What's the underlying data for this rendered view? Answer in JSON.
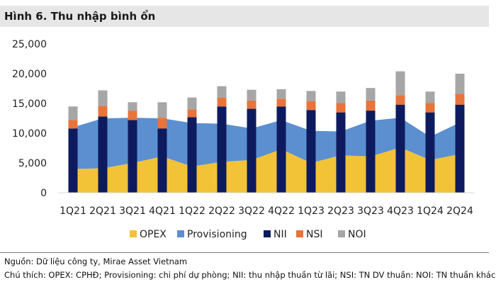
{
  "title": "Hình 6. Thu nhập bình ổn",
  "chart_data": {
    "type": "bar",
    "categories": [
      "1Q21",
      "2Q21",
      "3Q21",
      "4Q21",
      "1Q22",
      "2Q22",
      "3Q22",
      "4Q22",
      "1Q23",
      "2Q23",
      "3Q23",
      "4Q23",
      "1Q24",
      "2Q24"
    ],
    "area_series": [
      {
        "name": "OPEX",
        "color": "#f2c337",
        "values": [
          4000,
          4100,
          5000,
          6100,
          4400,
          5200,
          5500,
          7300,
          5000,
          6300,
          6100,
          7600,
          5500,
          6500
        ]
      },
      {
        "name": "Provisioning",
        "color": "#5b8fd0",
        "values": [
          7000,
          8400,
          7600,
          6400,
          7300,
          6400,
          5300,
          4900,
          5400,
          4000,
          6000,
          5000,
          3900,
          5300
        ]
      }
    ],
    "bar_series": [
      {
        "name": "NII",
        "color": "#0d1b5e",
        "values": [
          10800,
          12800,
          12200,
          10800,
          12700,
          14500,
          14100,
          14500,
          13900,
          13500,
          13800,
          14800,
          13500,
          14800
        ]
      },
      {
        "name": "NSI",
        "color": "#e8743b",
        "values": [
          1400,
          1800,
          1600,
          1800,
          1300,
          1500,
          1400,
          1300,
          1500,
          1600,
          1700,
          1600,
          1600,
          1800
        ]
      },
      {
        "name": "NOI",
        "color": "#a6a6a6",
        "values": [
          2300,
          2600,
          1400,
          2600,
          2000,
          1900,
          1800,
          1600,
          1700,
          1900,
          2100,
          4000,
          1900,
          3400
        ]
      }
    ],
    "legend": [
      "OPEX",
      "Provisioning",
      "NII",
      "NSI",
      "NOI"
    ],
    "y_ticks": [
      "0",
      "5,000",
      "10,000",
      "15,000",
      "20,000",
      "25,000"
    ],
    "ylim": [
      0,
      25000
    ],
    "legend_position": "bottom"
  },
  "source_note": "Nguồn: Dữ liệu công ty, Mirae Asset Vietnam",
  "footnote": "Chú thích: OPEX: CPHĐ; Provisioning: chi phí dự phòng; NII: thu nhập thuần từ lãi; NSI: TN DV thuần: NOI: TN thuần khác"
}
